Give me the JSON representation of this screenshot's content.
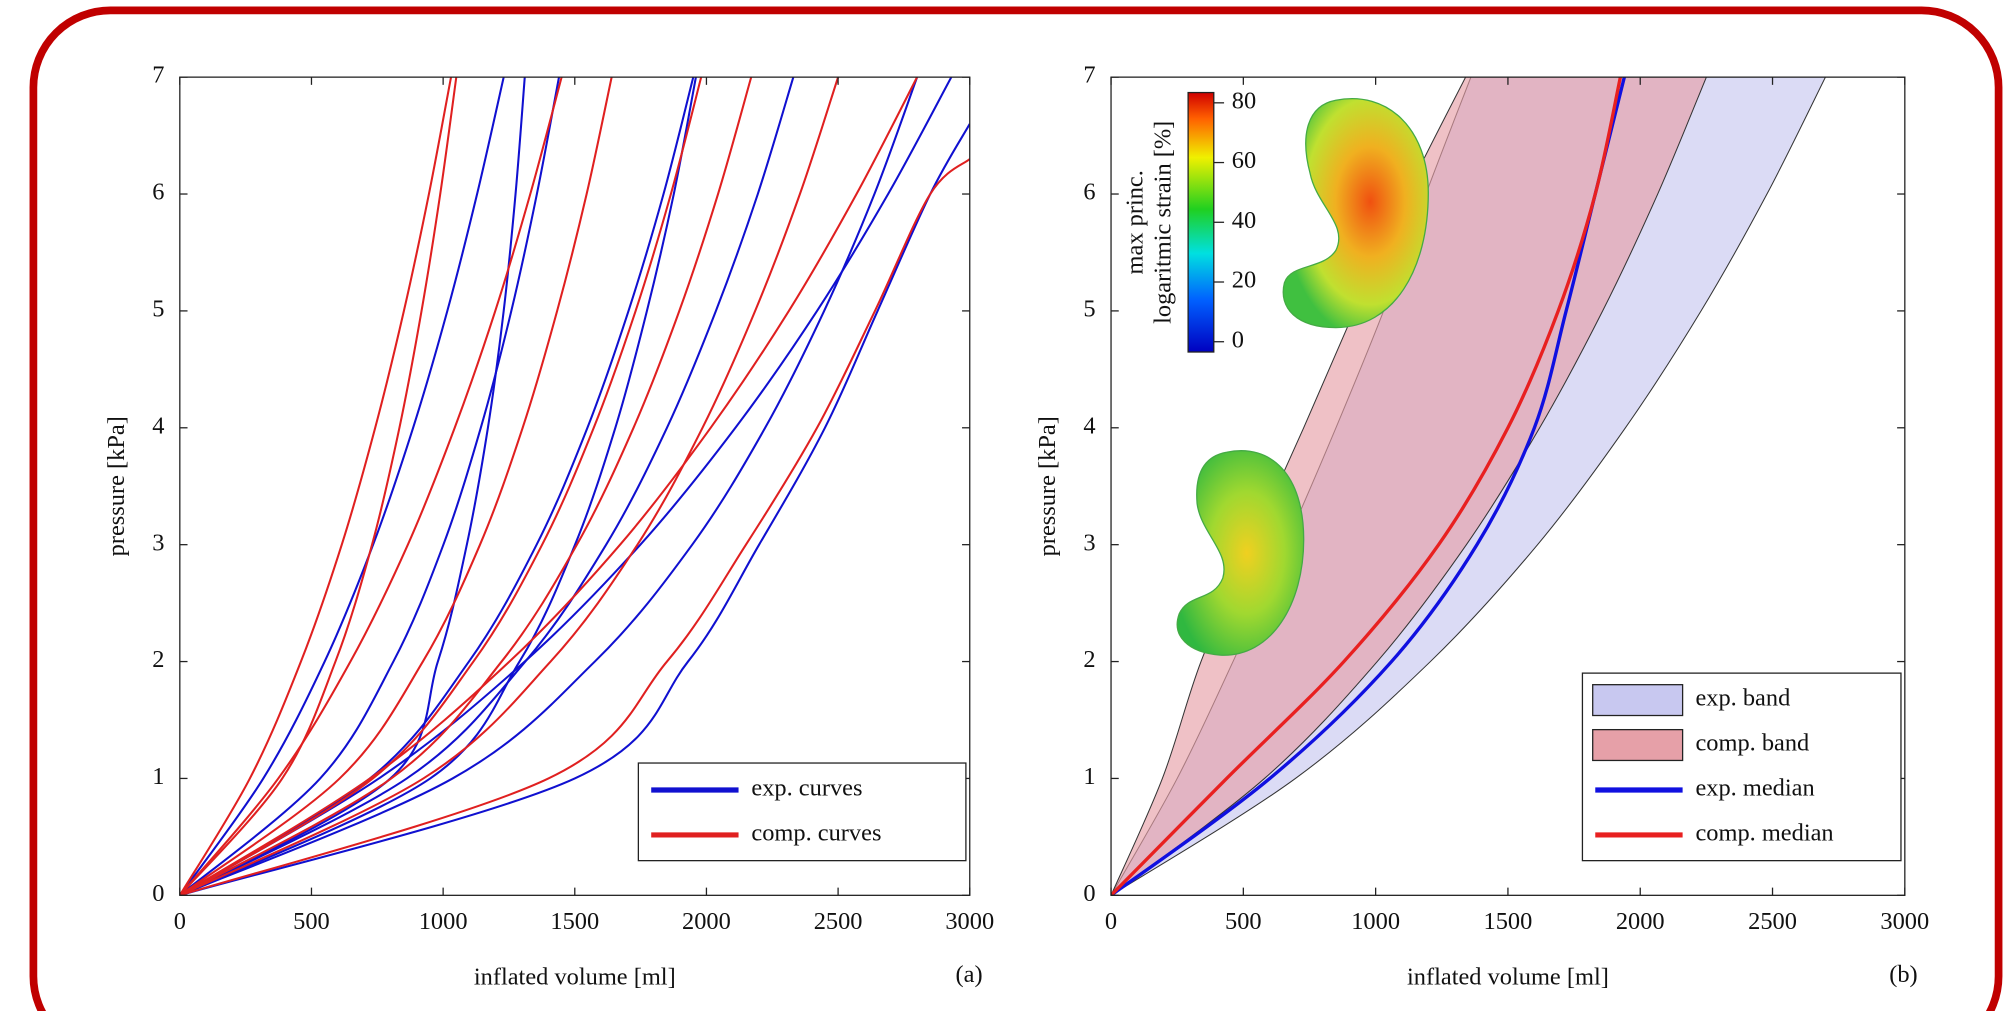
{
  "chart_data": [
    {
      "type": "line",
      "xlabel": "inflated volume [ml]",
      "ylabel": "pressure [kPa]",
      "panel_label": "(a)",
      "xlim": [
        0,
        3000
      ],
      "ylim": [
        0,
        7
      ],
      "xticks": [
        0,
        500,
        1000,
        1500,
        2000,
        2500,
        3000
      ],
      "yticks": [
        0,
        1,
        2,
        3,
        4,
        5,
        6,
        7
      ],
      "legend": "lower right",
      "series": [
        {
          "name": "exp. curves",
          "color": "#1010d0",
          "curves": [
            {
              "x": [
                0,
                317,
                550,
                734,
                886,
                1016,
                1129,
                1230
              ],
              "values": [
                0,
                1,
                2,
                3,
                4,
                5,
                6,
                7
              ]
            },
            {
              "x": [
                0,
                533,
                811,
                1001,
                1143,
                1259,
                1356,
                1440
              ],
              "values": [
                0,
                1,
                2,
                3,
                4,
                5,
                6,
                7
              ]
            },
            {
              "x": [
                0,
                800,
                980,
                1090,
                1170,
                1230,
                1275,
                1310
              ],
              "values": [
                0,
                1,
                2,
                3,
                4,
                5,
                6,
                7
              ]
            },
            {
              "x": [
                0,
                722,
                1098,
                1355,
                1548,
                1704,
                1837,
                1950
              ],
              "values": [
                0,
                1,
                2,
                3,
                4,
                5,
                6,
                7
              ]
            },
            {
              "x": [
                0,
                951,
                1290,
                1501,
                1654,
                1774,
                1876,
                1960
              ],
              "values": [
                0,
                1,
                2,
                3,
                4,
                5,
                6,
                7
              ]
            },
            {
              "x": [
                0,
                862,
                1312,
                1619,
                1850,
                2036,
                2195,
                2330
              ],
              "values": [
                0,
                1,
                2,
                3,
                4,
                5,
                6,
                7
              ]
            },
            {
              "x": [
                0,
                1036,
                1576,
                1946,
                2223,
                2447,
                2638,
                2800
              ],
              "values": [
                0,
                1,
                2,
                3,
                4,
                5,
                6,
                7
              ]
            },
            {
              "x": [
                0,
                756,
                1310,
                1749,
                2110,
                2420,
                2690,
                2930
              ],
              "values": [
                0,
                1,
                2,
                3,
                4,
                5,
                6,
                7
              ]
            },
            {
              "x": [
                0,
                1500,
                1930,
                2200,
                2450,
                2650,
                2850,
                3000
              ],
              "values": [
                0,
                1,
                2,
                3,
                4,
                5,
                6,
                6.6
              ]
            }
          ]
        },
        {
          "name": "comp. curves",
          "color": "#e02020",
          "curves": [
            {
              "x": [
                0,
                266,
                460,
                615,
                742,
                851,
                946,
                1030
              ],
              "values": [
                0,
                1,
                2,
                3,
                4,
                5,
                6,
                7
              ]
            },
            {
              "x": [
                0,
                389,
                591,
                730,
                834,
                918,
                989,
                1050
              ],
              "values": [
                0,
                1,
                2,
                3,
                4,
                5,
                6,
                7
              ]
            },
            {
              "x": [
                0,
                374,
                648,
                866,
                1044,
                1198,
                1331,
                1450
              ],
              "values": [
                0,
                1,
                2,
                3,
                4,
                5,
                6,
                7
              ]
            },
            {
              "x": [
                0,
                607,
                923,
                1140,
                1302,
                1433,
                1545,
                1640
              ],
              "values": [
                0,
                1,
                2,
                3,
                4,
                5,
                6,
                7
              ]
            },
            {
              "x": [
                0,
                733,
                1115,
                1376,
                1572,
                1731,
                1865,
                1980
              ],
              "values": [
                0,
                1,
                2,
                3,
                4,
                5,
                6,
                7
              ]
            },
            {
              "x": [
                0,
                803,
                1222,
                1508,
                1723,
                1897,
                2044,
                2170
              ],
              "values": [
                0,
                1,
                2,
                3,
                4,
                5,
                6,
                7
              ]
            },
            {
              "x": [
                0,
                925,
                1408,
                1738,
                1985,
                2185,
                2355,
                2500
              ],
              "values": [
                0,
                1,
                2,
                3,
                4,
                5,
                6,
                7
              ]
            },
            {
              "x": [
                0,
                722,
                1252,
                1672,
                2016,
                2313,
                2570,
                2800
              ],
              "values": [
                0,
                1,
                2,
                3,
                4,
                5,
                6,
                7
              ]
            },
            {
              "x": [
                0,
                1400,
                1850,
                2150,
                2420,
                2640,
                2850,
                3000
              ],
              "values": [
                0,
                1,
                2,
                3,
                4,
                5,
                6,
                6.3
              ]
            }
          ]
        }
      ]
    },
    {
      "type": "band",
      "xlabel": "inflated volume [ml]",
      "ylabel": "pressure [kPa]",
      "panel_label": "(b)",
      "xlim": [
        0,
        3000
      ],
      "ylim": [
        0,
        7
      ],
      "xticks": [
        0,
        500,
        1000,
        1500,
        2000,
        2500,
        3000
      ],
      "yticks": [
        0,
        1,
        2,
        3,
        4,
        5,
        6,
        7
      ],
      "legend": "lower right",
      "bands": [
        {
          "name": "exp. band",
          "color": "#c8c8f0",
          "x_lower": [
            0,
            250,
            461,
            660,
            850,
            1030,
            1190,
            1360
          ],
          "x_upper": [
            0,
            697,
            1207,
            1612,
            1944,
            2230,
            2479,
            2700
          ],
          "values": [
            0,
            1,
            2,
            3,
            4,
            5,
            6,
            7
          ]
        },
        {
          "name": "comp. band",
          "color": "#e6a0a8",
          "x_lower": [
            0,
            194,
            340,
            530,
            728,
            920,
            1117,
            1340
          ],
          "x_upper": [
            0,
            580,
            1006,
            1343,
            1620,
            1858,
            2066,
            2250
          ],
          "values": [
            0,
            1,
            2,
            3,
            4,
            5,
            6,
            7
          ]
        }
      ],
      "series": [
        {
          "name": "exp. median",
          "color": "#1010e0",
          "x": [
            0,
            600,
            1060,
            1383,
            1600,
            1720,
            1830,
            1940
          ],
          "values": [
            0,
            1,
            2,
            3,
            4,
            5,
            6,
            7
          ]
        },
        {
          "name": "comp. median",
          "color": "#e82020",
          "x": [
            0,
            437,
            880,
            1238,
            1500,
            1690,
            1830,
            1925
          ],
          "values": [
            0,
            1,
            2,
            3,
            4,
            5,
            6,
            7
          ]
        }
      ],
      "colorbar": {
        "label": [
          "max princ.",
          "logaritmic strain [%]"
        ],
        "lim": [
          0,
          80
        ],
        "ticks": [
          0,
          20,
          40,
          60,
          80
        ]
      }
    }
  ]
}
